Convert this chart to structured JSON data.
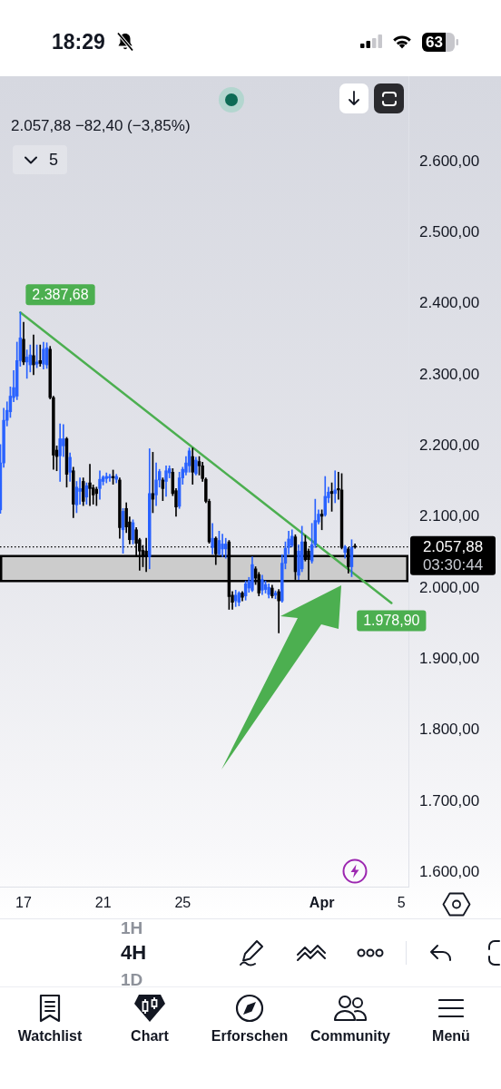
{
  "chart_data": {
    "type": "candlestick",
    "subtitle": "2.057,88 −82,40 (−3,85%)",
    "x": [
      "--03-15T20:00",
      "--03-16T00:00",
      "--03-16T04:00",
      "--03-16T08:00",
      "--03-16T12:00",
      "--03-16T16:00",
      "--03-16T20:00",
      "--03-17T00:00",
      "--03-17T04:00",
      "--03-17T08:00",
      "--03-17T12:00",
      "--03-17T16:00",
      "--03-17T20:00",
      "--03-18T00:00",
      "--03-18T04:00",
      "--03-18T08:00",
      "--03-18T12:00",
      "--03-18T16:00",
      "--03-18T20:00",
      "--03-19T00:00",
      "--03-19T04:00",
      "--03-19T08:00",
      "--03-19T12:00",
      "--03-19T16:00",
      "--03-19T20:00",
      "--03-20T00:00",
      "--03-20T04:00",
      "--03-20T08:00",
      "--03-20T12:00",
      "--03-20T16:00",
      "--03-20T20:00",
      "--03-21T00:00",
      "--03-21T04:00",
      "--03-21T08:00",
      "--03-21T12:00",
      "--03-21T16:00",
      "--03-21T20:00",
      "--03-22T00:00",
      "--03-22T04:00",
      "--03-22T08:00",
      "--03-22T12:00",
      "--03-22T16:00",
      "--03-22T20:00",
      "--03-23T00:00",
      "--03-23T04:00",
      "--03-23T08:00",
      "--03-23T12:00",
      "--03-23T16:00",
      "--03-23T20:00",
      "--03-24T00:00",
      "--03-24T04:00",
      "--03-24T08:00",
      "--03-24T12:00",
      "--03-24T16:00",
      "--03-24T20:00",
      "--03-25T00:00",
      "--03-25T04:00",
      "--03-25T08:00",
      "--03-25T12:00",
      "--03-25T16:00",
      "--03-25T20:00",
      "--03-26T00:00",
      "--03-26T04:00",
      "--03-26T08:00",
      "--03-26T12:00",
      "--03-26T16:00",
      "--03-26T20:00",
      "--03-27T00:00",
      "--03-27T04:00",
      "--03-27T08:00",
      "--03-27T12:00",
      "--03-27T16:00",
      "--03-27T20:00",
      "--03-28T00:00",
      "--03-28T04:00",
      "--03-28T08:00",
      "--03-28T12:00",
      "--03-28T16:00",
      "--03-28T20:00",
      "--03-29T00:00",
      "--03-29T04:00",
      "--03-29T08:00",
      "--03-29T12:00",
      "--03-29T16:00",
      "--03-29T20:00",
      "--03-30T00:00",
      "--03-30T04:00",
      "--03-30T08:00",
      "--03-30T12:00",
      "--03-30T16:00",
      "--03-30T20:00",
      "--03-31T00:00",
      "--03-31T04:00",
      "--03-31T08:00",
      "--03-31T12:00",
      "--03-31T16:00",
      "--03-31T20:00",
      "--04-01T00:00",
      "--04-01T04:00",
      "--04-01T08:00",
      "--04-01T12:00",
      "--04-01T16:00",
      "--04-01T20:00",
      "--04-02T00:00",
      "--04-02T04:00",
      "--04-02T08:00",
      "--04-02T12:00",
      "--04-02T16:00"
    ],
    "ohlc": [
      [
        2110,
        2202,
        2105,
        2176
      ],
      [
        2176,
        2253,
        2170,
        2236
      ],
      [
        2236,
        2262,
        2228,
        2250
      ],
      [
        2248,
        2283,
        2240,
        2270
      ],
      [
        2268,
        2306,
        2262,
        2282
      ],
      [
        2270,
        2346,
        2265,
        2320
      ],
      [
        2320,
        2388,
        2312,
        2352
      ],
      [
        2350,
        2374,
        2314,
        2318
      ],
      [
        2318,
        2335,
        2295,
        2325
      ],
      [
        2314,
        2342,
        2304,
        2328
      ],
      [
        2327,
        2356,
        2300,
        2314
      ],
      [
        2315,
        2342,
        2310,
        2318
      ],
      [
        2320,
        2342,
        2312,
        2316
      ],
      [
        2315,
        2346,
        2308,
        2336
      ],
      [
        2314,
        2345,
        2309,
        2338
      ],
      [
        2336,
        2340,
        2266,
        2268
      ],
      [
        2268,
        2270,
        2167,
        2187
      ],
      [
        2194,
        2200,
        2165,
        2185
      ],
      [
        2186,
        2231,
        2150,
        2210
      ],
      [
        2200,
        2230,
        2185,
        2210
      ],
      [
        2210,
        2212,
        2142,
        2160
      ],
      [
        2163,
        2190,
        2150,
        2184
      ],
      [
        2165,
        2170,
        2099,
        2118
      ],
      [
        2117,
        2150,
        2106,
        2142
      ],
      [
        2136,
        2155,
        2118,
        2140
      ],
      [
        2150,
        2155,
        2116,
        2122
      ],
      [
        2128,
        2148,
        2118,
        2144
      ],
      [
        2148,
        2174,
        2116,
        2140
      ],
      [
        2141,
        2145,
        2118,
        2131
      ],
      [
        2139,
        2142,
        2116,
        2133
      ],
      [
        2140,
        2165,
        2125,
        2153
      ],
      [
        2150,
        2158,
        2145,
        2156
      ],
      [
        2154,
        2162,
        2148,
        2157
      ],
      [
        2155,
        2160,
        2150,
        2157
      ],
      [
        2157,
        2166,
        2146,
        2155
      ],
      [
        2153,
        2160,
        2148,
        2157
      ],
      [
        2152,
        2155,
        2070,
        2085
      ],
      [
        2082,
        2112,
        2049,
        2108
      ],
      [
        2112,
        2120,
        2078,
        2086
      ],
      [
        2093,
        2100,
        2062,
        2068
      ],
      [
        2068,
        2096,
        2062,
        2092
      ],
      [
        2082,
        2085,
        2044,
        2063
      ],
      [
        2068,
        2070,
        2025,
        2052
      ],
      [
        2053,
        2060,
        2030,
        2045
      ],
      [
        2052,
        2070,
        2023,
        2044
      ],
      [
        2044,
        2196,
        2027,
        2133
      ],
      [
        2133,
        2191,
        2106,
        2125
      ],
      [
        2131,
        2176,
        2116,
        2152
      ],
      [
        2152,
        2167,
        2142,
        2164
      ],
      [
        2152,
        2155,
        2123,
        2140
      ],
      [
        2150,
        2172,
        2129,
        2165
      ],
      [
        2162,
        2172,
        2155,
        2168
      ],
      [
        2163,
        2168,
        2130,
        2133
      ],
      [
        2137,
        2140,
        2101,
        2114
      ],
      [
        2115,
        2163,
        2112,
        2155
      ],
      [
        2155,
        2170,
        2146,
        2167
      ],
      [
        2163,
        2185,
        2159,
        2176
      ],
      [
        2172,
        2197,
        2163,
        2193
      ],
      [
        2185,
        2197,
        2146,
        2163
      ],
      [
        2161,
        2184,
        2159,
        2180
      ],
      [
        2178,
        2185,
        2159,
        2172
      ],
      [
        2172,
        2177,
        2150,
        2154
      ],
      [
        2153,
        2155,
        2120,
        2122
      ],
      [
        2122,
        2125,
        2063,
        2065
      ],
      [
        2057,
        2091,
        2048,
        2070
      ],
      [
        2070,
        2072,
        2033,
        2048
      ],
      [
        2048,
        2080,
        2046,
        2067
      ],
      [
        2055,
        2076,
        2044,
        2062
      ],
      [
        2055,
        2070,
        2042,
        2062
      ],
      [
        2065,
        2067,
        1970,
        1988
      ],
      [
        1990,
        1995,
        1970,
        1980
      ],
      [
        1982,
        1997,
        1974,
        1990
      ],
      [
        1980,
        1995,
        1975,
        1993
      ],
      [
        1993,
        1995,
        1982,
        1987
      ],
      [
        1989,
        2010,
        1983,
        2006
      ],
      [
        2000,
        2015,
        1994,
        2010
      ],
      [
        1997,
        2044,
        1995,
        2033
      ],
      [
        2027,
        2030,
        2005,
        2014
      ],
      [
        2019,
        2022,
        1989,
        1993
      ],
      [
        1997,
        2018,
        1991,
        2012
      ],
      [
        1998,
        2010,
        1993,
        2005
      ],
      [
        1991,
        2006,
        1986,
        2001
      ],
      [
        2000,
        2004,
        1986,
        1989
      ],
      [
        1990,
        1996,
        1985,
        1993
      ],
      [
        1995,
        1998,
        1937,
        1982
      ],
      [
        1982,
        2047,
        1980,
        2035
      ],
      [
        2035,
        2065,
        2027,
        2056
      ],
      [
        2057,
        2080,
        2048,
        2069
      ],
      [
        2060,
        2082,
        2058,
        2073
      ],
      [
        2072,
        2075,
        2012,
        2023
      ],
      [
        2018,
        2061,
        2012,
        2052
      ],
      [
        2027,
        2087,
        2023,
        2065
      ],
      [
        2065,
        2074,
        2038,
        2040
      ],
      [
        2052,
        2055,
        2012,
        2040
      ],
      [
        2038,
        2091,
        2035,
        2061
      ],
      [
        2061,
        2125,
        2057,
        2095
      ],
      [
        2093,
        2110,
        2090,
        2104
      ],
      [
        2104,
        2110,
        2082,
        2101
      ],
      [
        2103,
        2157,
        2101,
        2129
      ],
      [
        2127,
        2142,
        2120,
        2135
      ],
      [
        2136,
        2148,
        2108,
        2133
      ],
      [
        2133,
        2165,
        2120,
        2138
      ],
      [
        2140,
        2163,
        2125,
        2138
      ],
      [
        2138,
        2161,
        2055,
        2057
      ],
      [
        2050,
        2060,
        2042,
        2058
      ],
      [
        2055,
        2057,
        2021,
        2030
      ],
      [
        2030,
        2068,
        2016,
        2057
      ],
      [
        2059,
        2062,
        2056,
        2057.88
      ]
    ],
    "colors": [
      "#2962ff",
      "#2962ff",
      "#2962ff",
      "#2962ff",
      "#2962ff",
      "#2962ff",
      "#2962ff",
      "#000000",
      "#2962ff",
      "#2962ff",
      "#000000",
      "#2962ff",
      "#000000",
      "#2962ff",
      "#2962ff",
      "#000000",
      "#000000",
      "#000000",
      "#2962ff",
      "#2962ff",
      "#000000",
      "#2962ff",
      "#000000",
      "#2962ff",
      "#2962ff",
      "#000000",
      "#2962ff",
      "#000000",
      "#000000",
      "#000000",
      "#2962ff",
      "#2962ff",
      "#2962ff",
      "#2962ff",
      "#000000",
      "#2962ff",
      "#000000",
      "#2962ff",
      "#000000",
      "#000000",
      "#2962ff",
      "#000000",
      "#000000",
      "#000000",
      "#000000",
      "#2962ff",
      "#000000",
      "#2962ff",
      "#2962ff",
      "#000000",
      "#2962ff",
      "#2962ff",
      "#000000",
      "#000000",
      "#2962ff",
      "#2962ff",
      "#2962ff",
      "#2962ff",
      "#000000",
      "#2962ff",
      "#000000",
      "#000000",
      "#000000",
      "#000000",
      "#2962ff",
      "#000000",
      "#2962ff",
      "#2962ff",
      "#2962ff",
      "#000000",
      "#000000",
      "#2962ff",
      "#2962ff",
      "#000000",
      "#2962ff",
      "#2962ff",
      "#2962ff",
      "#000000",
      "#000000",
      "#2962ff",
      "#2962ff",
      "#2962ff",
      "#000000",
      "#2962ff",
      "#000000",
      "#2962ff",
      "#2962ff",
      "#2962ff",
      "#2962ff",
      "#000000",
      "#2962ff",
      "#2962ff",
      "#000000",
      "#000000",
      "#2962ff",
      "#2962ff",
      "#2962ff",
      "#000000",
      "#2962ff",
      "#2962ff",
      "#000000",
      "#2962ff",
      "#000000",
      "#000000",
      "#2962ff",
      "#000000",
      "#2962ff",
      "#000000"
    ],
    "series": [
      {
        "type": "line",
        "color": "#4caf50",
        "x": [
          "--03-16T20:00",
          "--04-04T12:00"
        ],
        "values": [
          2387.68,
          1978.9
        ],
        "value_labels": [
          "2.387,68",
          "1.978,90"
        ]
      }
    ],
    "xlim": [
      "--03-15T19:30",
      "--04-05T08:30"
    ],
    "xticks": [
      {
        "value": "--03-17",
        "label": "17"
      },
      {
        "value": "--03-21",
        "label": "21"
      },
      {
        "value": "--03-25",
        "label": "25"
      },
      {
        "value": "--04-01",
        "label": "Apr"
      },
      {
        "value": "--04-05",
        "label": "5"
      }
    ],
    "ylim": [
      1580,
      2720
    ],
    "yticks": [
      {
        "value": 1600,
        "label": "1.600,00"
      },
      {
        "value": 1700,
        "label": "1.700,00"
      },
      {
        "value": 1800,
        "label": "1.800,00"
      },
      {
        "value": 1900,
        "label": "1.900,00"
      },
      {
        "value": 2000,
        "label": "2.000,00"
      },
      {
        "value": 2100,
        "label": "2.100,00"
      },
      {
        "value": 2200,
        "label": "2.200,00"
      },
      {
        "value": 2300,
        "label": "2.300,00"
      },
      {
        "value": 2400,
        "label": "2.400,00"
      },
      {
        "value": 2500,
        "label": "2.500,00"
      },
      {
        "value": 2600,
        "label": "2.600,00"
      }
    ],
    "ref_lines": [
      {
        "axis": "y",
        "value": 2057.88,
        "label": "2.057,88",
        "color": "#000000",
        "line_style": "dotted"
      }
    ],
    "bands": [
      {
        "axis": "y",
        "from": 2010,
        "to": 2045,
        "color": "#cccccc"
      }
    ],
    "annotations": [
      "18:29",
      "63",
      "5",
      "03:30:44",
      "1H",
      "4H",
      "1D",
      "Watchlist",
      "Chart",
      "Erforschen",
      "Community",
      "Menü"
    ]
  }
}
